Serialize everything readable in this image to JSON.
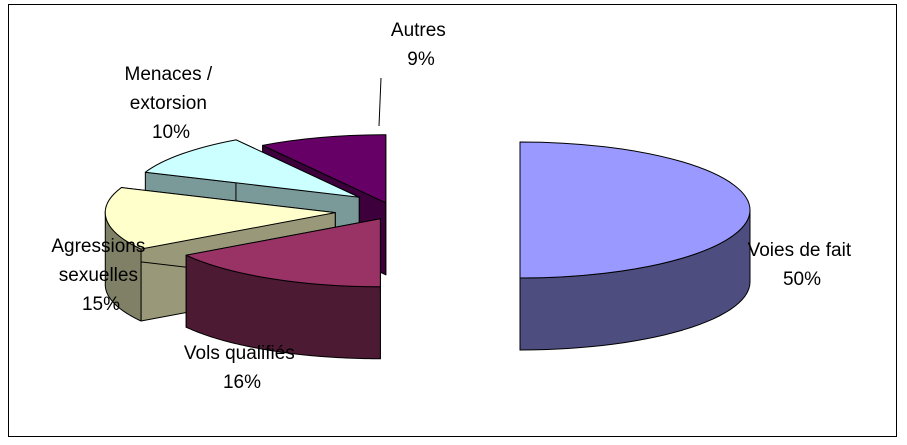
{
  "chart_data": {
    "type": "pie",
    "style": "3d-exploded",
    "title": "",
    "categories": [
      "Voies de fait",
      "Vols qualifiés",
      "Agressions sexuelles",
      "Menaces / extorsion",
      "Autres"
    ],
    "values": [
      50,
      16,
      15,
      10,
      9
    ],
    "value_labels": [
      "50%",
      "16%",
      "15%",
      "10%",
      "9%"
    ],
    "colors": {
      "Voies de fait": "#9999ff",
      "Vols qualifiés": "#993366",
      "Agressions sexuelles": "#ffffcc",
      "Menaces / extorsion": "#ccffff",
      "Autres": "#660066"
    },
    "legend": "none"
  },
  "labels": {
    "voies": [
      "Voies de fait",
      "50%"
    ],
    "vols": [
      "Vols qualifiés",
      "16%"
    ],
    "agressions": [
      "Agressions",
      "sexuelles",
      "15%"
    ],
    "menaces": [
      "Menaces /",
      "extorsion",
      "10%"
    ],
    "autres": [
      "Autres",
      "9%"
    ]
  }
}
